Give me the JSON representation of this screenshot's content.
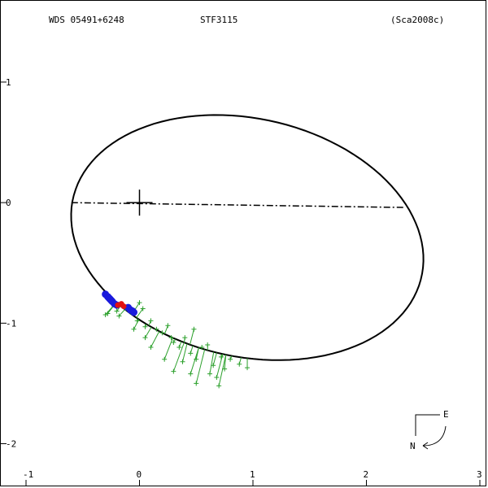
{
  "header": {
    "left": "WDS 05491+6248",
    "center": "STF3115",
    "right": "(Sca2008c)"
  },
  "compass": {
    "east": "E",
    "north": "N"
  },
  "colors": {
    "axes": "#000000",
    "orbit": "#000000",
    "observations": "#2ca02c",
    "interferometric": "#1a1adc",
    "highlight": "#e01010"
  },
  "chart_data": {
    "type": "scatter",
    "xlim": [
      -1,
      3
    ],
    "ylim": [
      -2.3,
      1.6
    ],
    "x_ticks": [
      "-1",
      "0",
      "1",
      "2",
      "3"
    ],
    "y_ticks": [
      "1",
      "0",
      "-1",
      "-2"
    ],
    "grid": false,
    "orbit_ellipse": {
      "center": [
        0.95,
        -0.29
      ],
      "semi_axes": [
        1.57,
        0.99
      ],
      "rotation_deg": -11
    },
    "line_of_nodes": {
      "from": [
        -0.6,
        0.0
      ],
      "to": [
        2.33,
        -0.04
      ]
    },
    "primary": [
      0,
      0
    ],
    "series": [
      {
        "marker": "plus",
        "points": [
          [
            -0.3,
            -0.93
          ],
          [
            -0.28,
            -0.92
          ],
          [
            -0.2,
            -0.9
          ],
          [
            -0.18,
            -0.94
          ],
          [
            -0.12,
            -0.88
          ],
          [
            -0.08,
            -0.91
          ],
          [
            0.0,
            -0.83
          ],
          [
            0.03,
            -0.88
          ],
          [
            -0.02,
            -0.98
          ],
          [
            0.05,
            -1.03
          ],
          [
            0.1,
            -0.98
          ],
          [
            0.15,
            -1.05
          ],
          [
            0.2,
            -1.08
          ],
          [
            0.25,
            -1.02
          ],
          [
            0.28,
            -1.12
          ],
          [
            0.3,
            -1.16
          ],
          [
            0.35,
            -1.2
          ],
          [
            0.4,
            -1.12
          ],
          [
            0.45,
            -1.25
          ],
          [
            0.5,
            -1.3
          ],
          [
            0.55,
            -1.2
          ],
          [
            0.6,
            -1.18
          ],
          [
            0.65,
            -1.35
          ],
          [
            0.68,
            -1.45
          ],
          [
            0.72,
            -1.28
          ],
          [
            0.75,
            -1.38
          ],
          [
            0.8,
            -1.3
          ],
          [
            0.88,
            -1.34
          ],
          [
            0.95,
            -1.37
          ],
          [
            0.5,
            -1.5
          ],
          [
            0.45,
            -1.42
          ],
          [
            0.38,
            -1.32
          ],
          [
            0.3,
            -1.4
          ],
          [
            0.22,
            -1.3
          ],
          [
            0.1,
            -1.2
          ],
          [
            0.05,
            -1.12
          ],
          [
            -0.05,
            -1.05
          ],
          [
            0.48,
            -1.05
          ],
          [
            0.62,
            -1.42
          ],
          [
            0.7,
            -1.52
          ]
        ]
      },
      {
        "marker": "dot",
        "points": [
          [
            -0.3,
            -0.76
          ],
          [
            -0.28,
            -0.78
          ],
          [
            -0.26,
            -0.8
          ],
          [
            -0.24,
            -0.82
          ],
          [
            -0.22,
            -0.84
          ],
          [
            -0.2,
            -0.85
          ],
          [
            -0.1,
            -0.87
          ],
          [
            -0.08,
            -0.89
          ],
          [
            -0.06,
            -0.9
          ],
          [
            -0.05,
            -0.91
          ],
          [
            -0.27,
            -0.79
          ],
          [
            -0.25,
            -0.81
          ]
        ]
      },
      {
        "marker": "dot",
        "points": [
          [
            -0.19,
            -0.85
          ],
          [
            -0.16,
            -0.84
          ],
          [
            -0.14,
            -0.86
          ]
        ]
      }
    ]
  }
}
